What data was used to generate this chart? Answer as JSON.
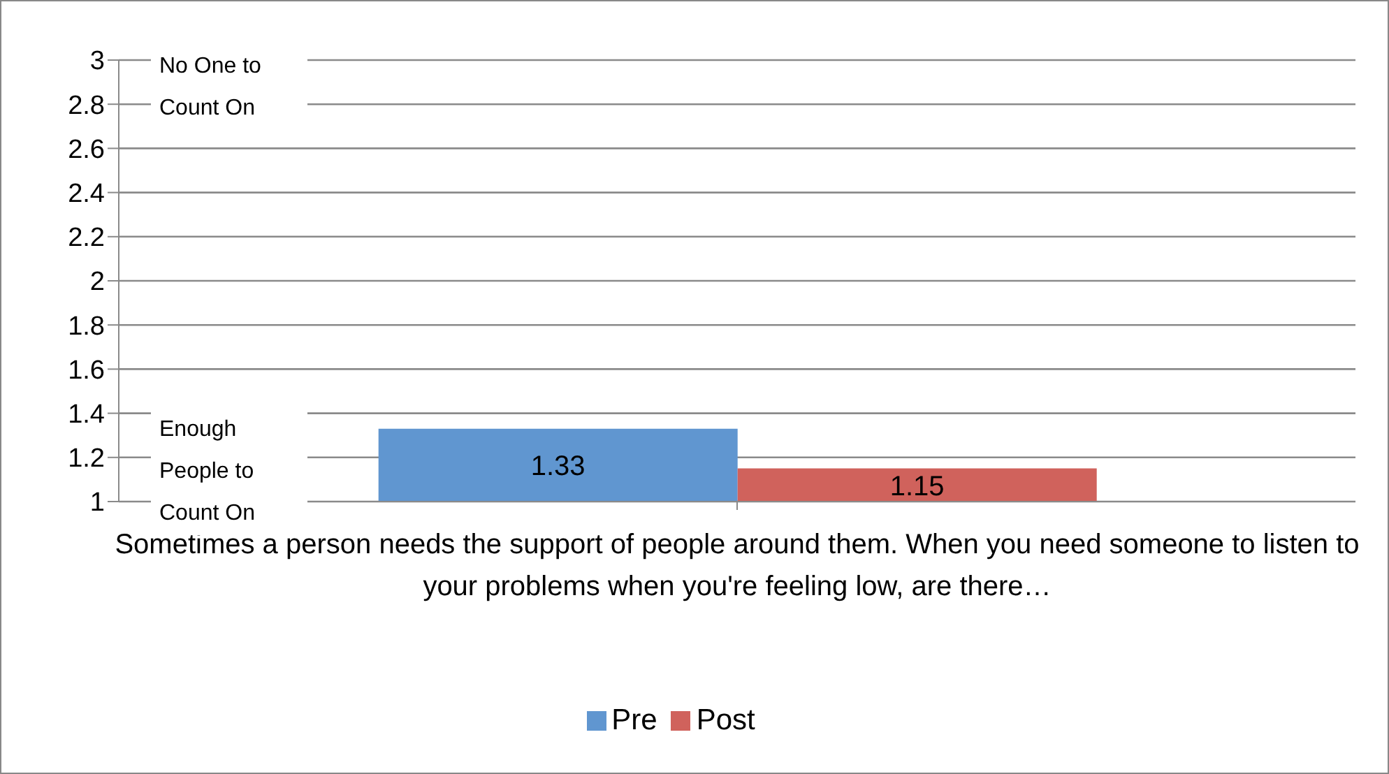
{
  "chart_data": {
    "type": "bar",
    "categories": [
      "Sometimes a person needs the support of people around them.  When you need someone to listen to your problems when you're feeling low, are there…"
    ],
    "series": [
      {
        "name": "Pre",
        "color": "#6096d0",
        "values": [
          1.33
        ]
      },
      {
        "name": "Post",
        "color": "#d0625c",
        "values": [
          1.15
        ]
      }
    ],
    "ylim": [
      1,
      3
    ],
    "yticks": [
      1,
      1.2,
      1.4,
      1.6,
      1.8,
      2,
      2.2,
      2.4,
      2.6,
      2.8,
      3
    ],
    "grid": "y",
    "legend": "bottom",
    "data_labels": true,
    "annotations": [
      "No One to Count On",
      "Enough People to Count On"
    ]
  }
}
